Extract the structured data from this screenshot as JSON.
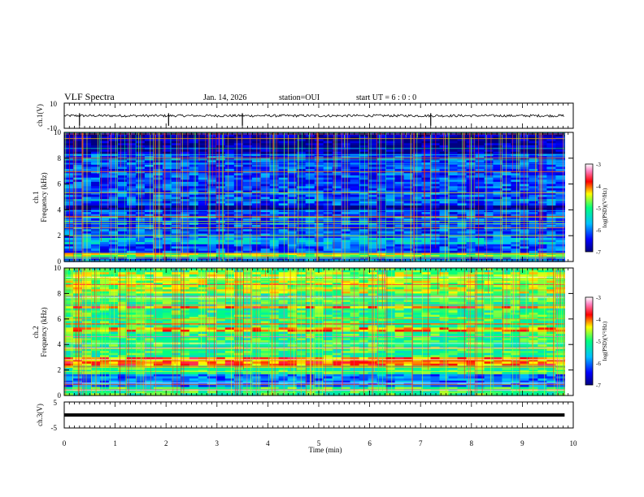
{
  "header": {
    "title": "VLF Spectra",
    "date": "Jan. 14, 2026",
    "station": "station=OUI",
    "start_ut": "start UT =  6 : 0 : 0"
  },
  "chart_data": [
    {
      "type": "line",
      "panel": "waveform-ch1",
      "ylabel": "ch.1(V)",
      "ylim": [
        -10,
        10
      ],
      "yticks": [
        "10",
        "-10"
      ],
      "xlim": [
        0,
        10
      ],
      "baseline_value": 0,
      "noise_amplitude": 1,
      "spikes_min": [
        0.3,
        2.05,
        3.5,
        7.2
      ],
      "data_end_min": 9.83,
      "color": "#000000"
    },
    {
      "type": "heatmap",
      "panel": "spectrogram-ch1",
      "ylabel": "ch.1",
      "ylabel2": "Frequency (kHz)",
      "ylim": [
        0,
        10
      ],
      "yticks": [
        "0",
        "2",
        "4",
        "6",
        "8",
        "10"
      ],
      "xlim": [
        0,
        10
      ],
      "data_end_min": 9.83,
      "background_level": -6.2,
      "colorbar": {
        "label": "log(PSD)(V²/Hz)",
        "range": [
          -7,
          -3
        ],
        "ticks": [
          "-3",
          "-4",
          "-5",
          "-6",
          "-7"
        ],
        "colors": [
          "#000080",
          "#0000ff",
          "#00c0ff",
          "#00ff80",
          "#ffff00",
          "#ff0000",
          "#ff80c0",
          "#ffffff"
        ]
      }
    },
    {
      "type": "heatmap",
      "panel": "spectrogram-ch2",
      "ylabel": "ch.2",
      "ylabel2": "Frequency (kHz)",
      "ylim": [
        0,
        10
      ],
      "yticks": [
        "0",
        "2",
        "4",
        "6",
        "8",
        "10"
      ],
      "xlim": [
        0,
        10
      ],
      "data_end_min": 9.83,
      "background_level": -5.0,
      "colorbar": {
        "label": "log(PSD)(V²/Hz)",
        "range": [
          -7,
          -3
        ],
        "ticks": [
          "-3",
          "-4",
          "-5",
          "-6",
          "-7"
        ],
        "colors": [
          "#000080",
          "#0000ff",
          "#00c0ff",
          "#00ff80",
          "#ffff00",
          "#ff0000",
          "#ff80c0",
          "#ffffff"
        ]
      }
    },
    {
      "type": "line",
      "panel": "waveform-ch3",
      "ylabel": "ch.3(V)",
      "ylim": [
        -5,
        5
      ],
      "yticks": [
        "5",
        "-5"
      ],
      "xlim": [
        0,
        10
      ],
      "baseline_value": 0,
      "data_end_min": 9.83,
      "color": "#000000"
    }
  ],
  "xaxis": {
    "label": "Time (min)",
    "ticks": [
      "0",
      "1",
      "2",
      "3",
      "4",
      "5",
      "6",
      "7",
      "8",
      "9",
      "10"
    ]
  }
}
